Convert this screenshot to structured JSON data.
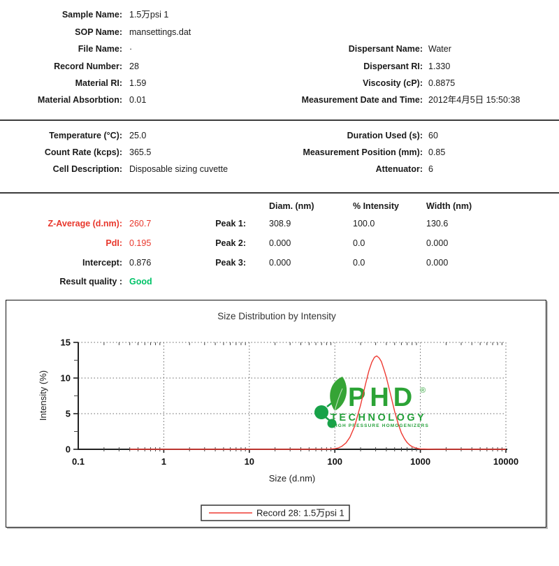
{
  "sample_info": {
    "rows_left": [
      {
        "label": "Sample Name:",
        "value": "1.5万psi 1"
      },
      {
        "label": "SOP Name:",
        "value": "mansettings.dat"
      },
      {
        "label": "File Name:",
        "value": "·"
      },
      {
        "label": "Record Number:",
        "value": "28"
      },
      {
        "label": "Material RI:",
        "value": "1.59"
      },
      {
        "label": "Material Absorbtion:",
        "value": "0.01"
      }
    ],
    "rows_right": [
      {
        "label": "Dispersant Name:",
        "value": "Water"
      },
      {
        "label": "Dispersant RI:",
        "value": "1.330"
      },
      {
        "label": "Viscosity (cP):",
        "value": "0.8875"
      },
      {
        "label": "Measurement Date and Time:",
        "value": "2012年4月5日 15:50:38"
      }
    ]
  },
  "conditions": {
    "rows_left": [
      {
        "label": "Temperature (°C):",
        "value": "25.0"
      },
      {
        "label": "Count Rate (kcps):",
        "value": "365.5"
      },
      {
        "label": "Cell Description:",
        "value": "Disposable sizing cuvette"
      }
    ],
    "rows_right": [
      {
        "label": "Duration Used (s):",
        "value": "60"
      },
      {
        "label": "Measurement Position (mm):",
        "value": "0.85"
      },
      {
        "label": "Attenuator:",
        "value": "6"
      }
    ]
  },
  "results": {
    "rows": [
      {
        "label": "Z-Average (d.nm):",
        "value": "260.7"
      },
      {
        "label": "PdI:",
        "value": "0.195"
      },
      {
        "label": "Intercept:",
        "value": "0.876"
      },
      {
        "label": "Result quality :",
        "value": "Good"
      }
    ],
    "colors": {
      "highlight_red": "#e8372c",
      "good_green": "#00c368"
    },
    "peak_table": {
      "columns": [
        "Diam. (nm)",
        "% Intensity",
        "Width (nm)"
      ],
      "rows": [
        {
          "label": "Peak 1:",
          "diam": "308.9",
          "intensity": "100.0",
          "width": "130.6"
        },
        {
          "label": "Peak 2:",
          "diam": "0.000",
          "intensity": "0.0",
          "width": "0.000"
        },
        {
          "label": "Peak 3:",
          "diam": "0.000",
          "intensity": "0.0",
          "width": "0.000"
        }
      ]
    }
  },
  "chart_data": {
    "type": "line",
    "title": "Size Distribution by Intensity",
    "xlabel": "Size (d.nm)",
    "ylabel": "Intensity (%)",
    "x_scale": "log",
    "xlim": [
      0.1,
      10000
    ],
    "ylim": [
      0,
      15
    ],
    "x_ticks": [
      0.1,
      1,
      10,
      100,
      1000,
      10000
    ],
    "x_tick_labels": [
      "0.1",
      "1",
      "10",
      "100",
      "1000",
      "10000"
    ],
    "y_ticks": [
      0,
      5,
      10,
      15
    ],
    "y_minor_ticks": [
      2.5,
      7.5,
      12.5
    ],
    "grid": "dotted",
    "legend_label": "Record 28: 1.5万psi 1",
    "series": [
      {
        "name": "Record 28: 1.5万psi 1",
        "color": "#ee3b33",
        "peak_dnm": 308.9,
        "peak_intensity_pct": 13.1,
        "points": [
          [
            0.4,
            0
          ],
          [
            1,
            0
          ],
          [
            10,
            0
          ],
          [
            40,
            0
          ],
          [
            70,
            0.01
          ],
          [
            90,
            0.04
          ],
          [
            100,
            0.09
          ],
          [
            110,
            0.2
          ],
          [
            120,
            0.4
          ],
          [
            135,
            0.9
          ],
          [
            150,
            1.7
          ],
          [
            170,
            3.2
          ],
          [
            200,
            6.2
          ],
          [
            230,
            9.3
          ],
          [
            250,
            11.0
          ],
          [
            270,
            12.2
          ],
          [
            290,
            12.9
          ],
          [
            309,
            13.1
          ],
          [
            330,
            12.8
          ],
          [
            350,
            12.3
          ],
          [
            380,
            11.0
          ],
          [
            400,
            10.1
          ],
          [
            450,
            7.6
          ],
          [
            500,
            5.3
          ],
          [
            550,
            3.6
          ],
          [
            600,
            2.3
          ],
          [
            650,
            1.5
          ],
          [
            700,
            0.95
          ],
          [
            750,
            0.6
          ],
          [
            800,
            0.38
          ],
          [
            900,
            0.15
          ],
          [
            1000,
            0.05
          ],
          [
            1500,
            0
          ],
          [
            10000,
            0
          ]
        ]
      }
    ]
  },
  "logo": {
    "name": "PHD",
    "reg": "®",
    "line2": "TECHNOLOGY",
    "line3": "HIGH PRESSURE HOMOGENIZERS",
    "color": "#24a03a"
  }
}
